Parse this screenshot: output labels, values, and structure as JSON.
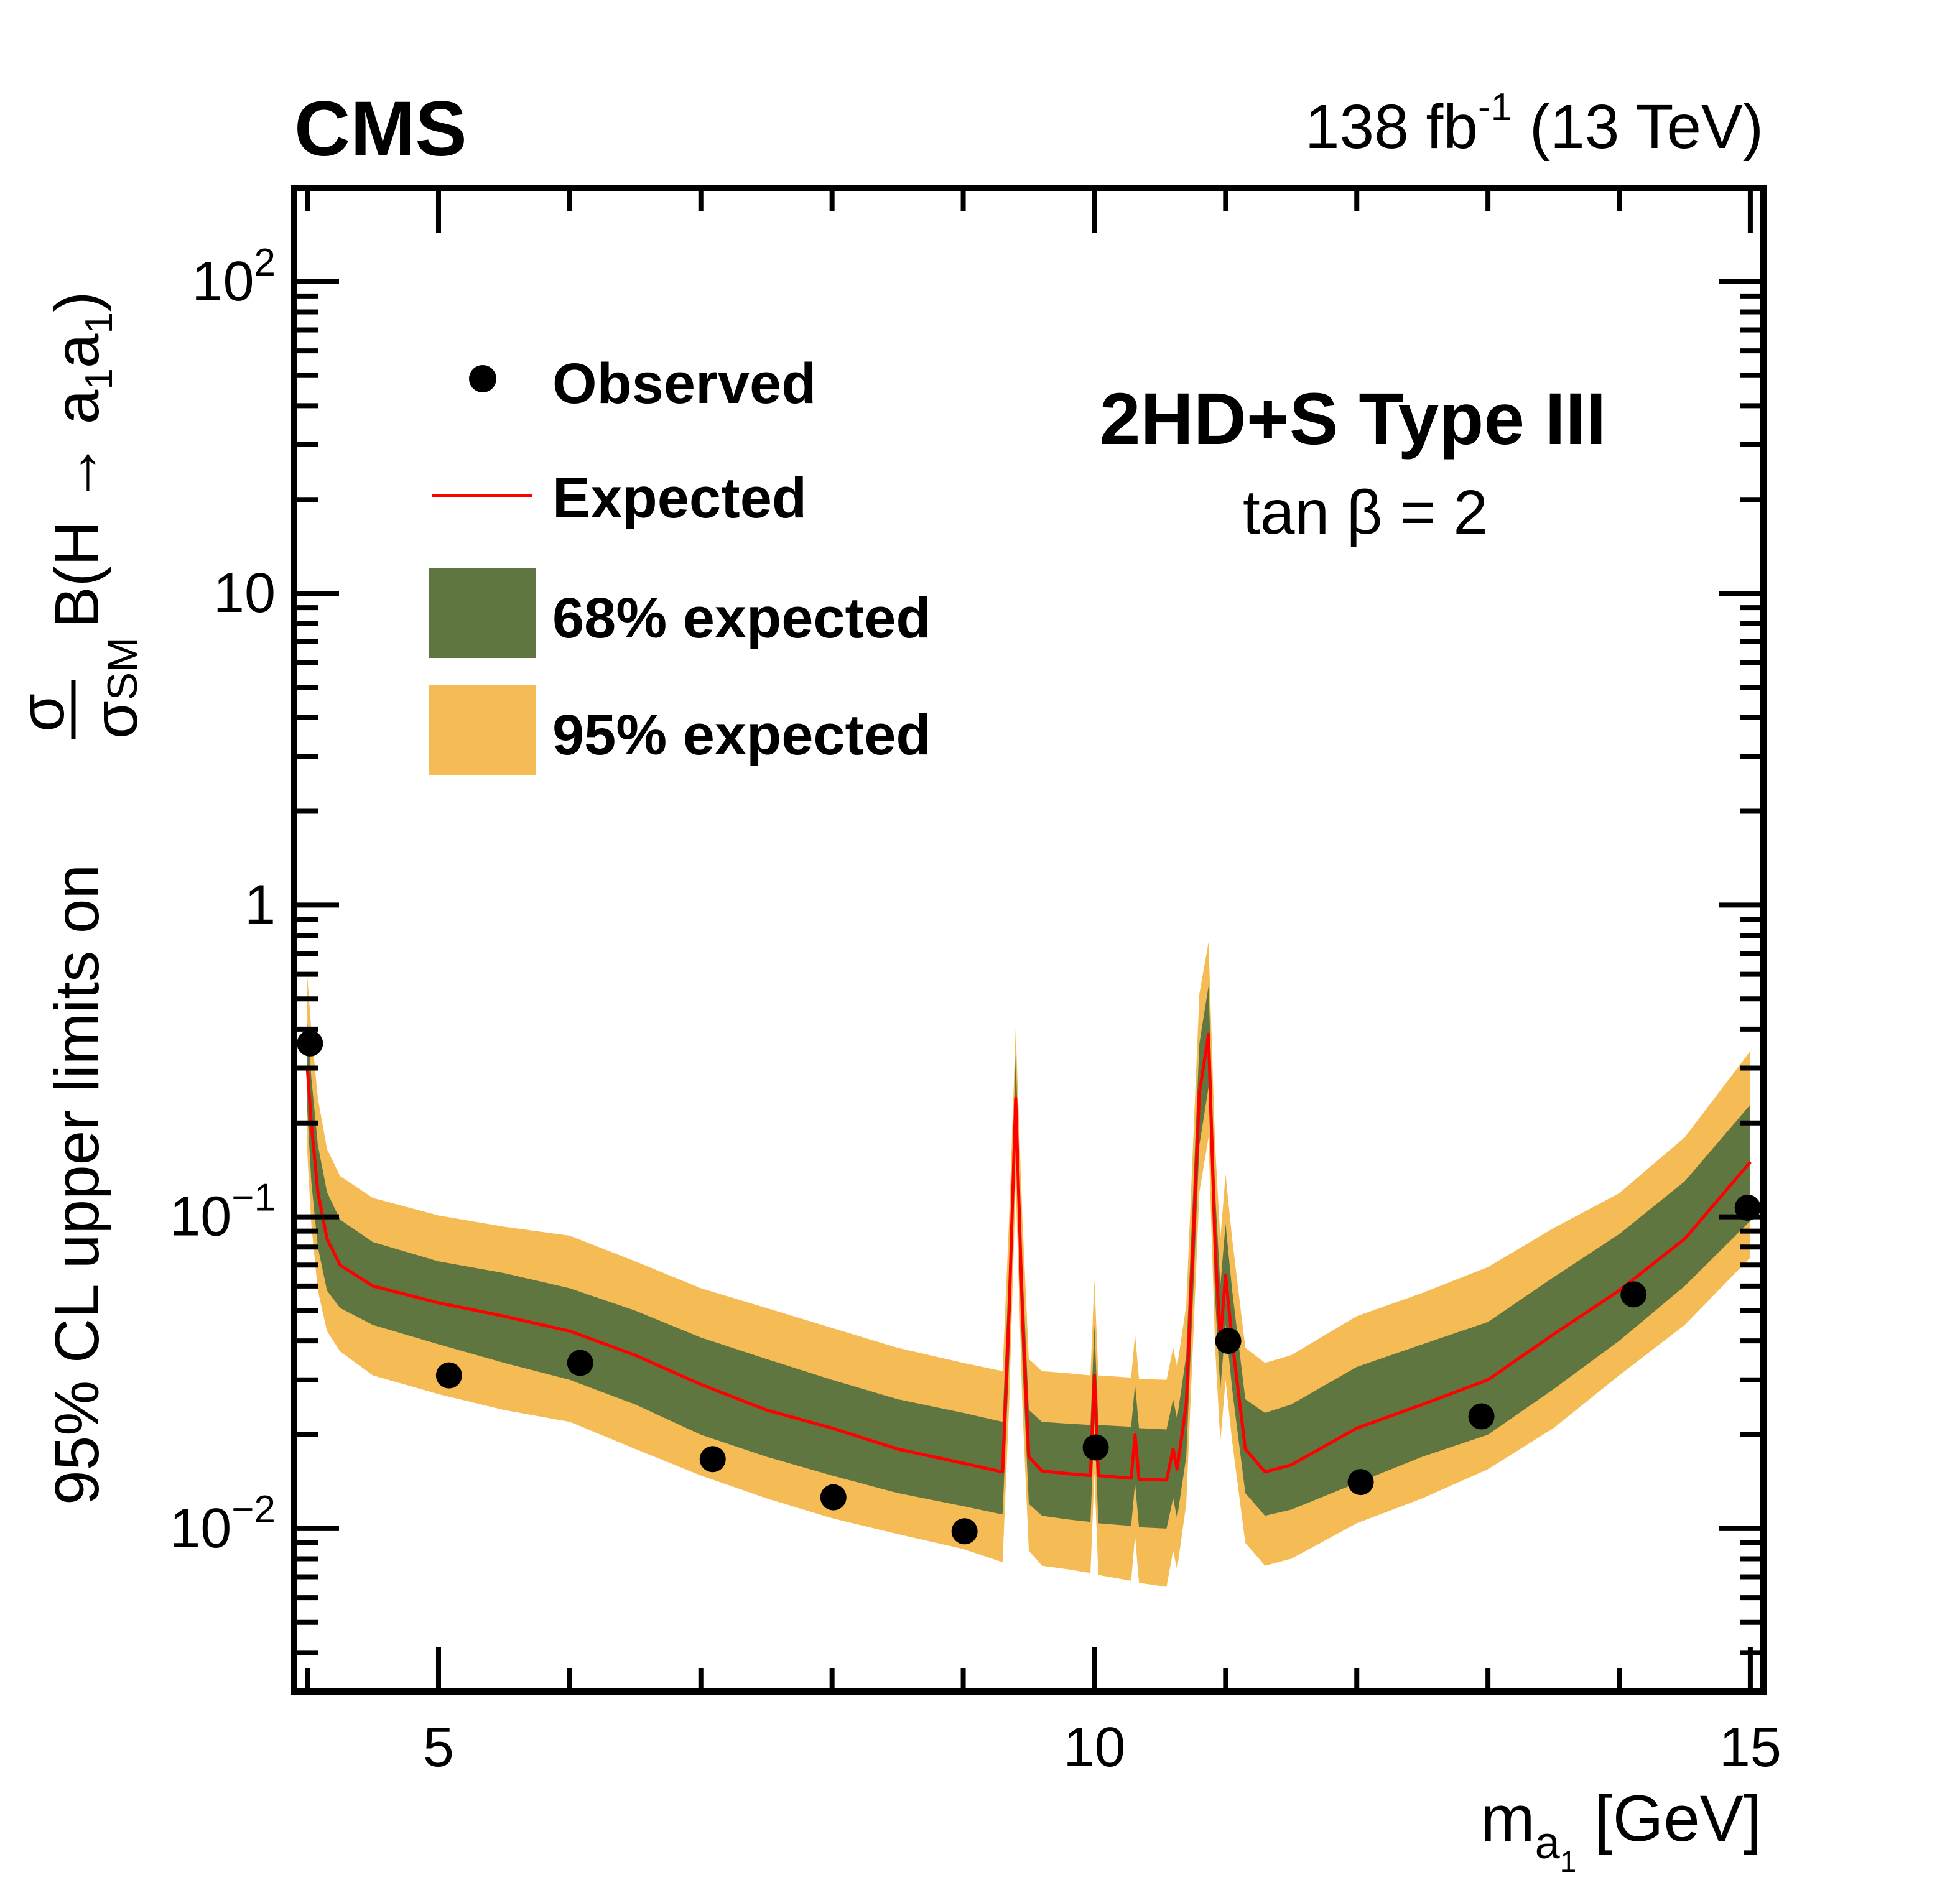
{
  "chart_data": {
    "type": "line",
    "experiment_label": "CMS",
    "lumi_label": {
      "value": "138 fb",
      "sup": "-1",
      "energy": " (13 TeV)"
    },
    "annotation": {
      "title": "2HD+S Type III",
      "subtitle": "tan β = 2"
    },
    "xlabel": {
      "main": "m",
      "sub": "a",
      "subsub": "1",
      "unit": " [GeV]"
    },
    "ylabel": {
      "prefix": "95% CL upper limits on ",
      "frac_num": "σ",
      "frac_den": "σ",
      "frac_den_sub": "SM",
      "suffix": " B(H → a",
      "s1": "1",
      "mid": "a",
      "s2": "1",
      "close": ")"
    },
    "xlim": [
      3.9,
      15.1
    ],
    "ylim": [
      0.003,
      200
    ],
    "yscale": "log",
    "xticks": [
      {
        "value": 5,
        "label": "5"
      },
      {
        "value": 10,
        "label": "10"
      },
      {
        "value": 15,
        "label": "15"
      }
    ],
    "yticks": [
      {
        "value": 100,
        "base": "10",
        "exp": "2"
      },
      {
        "value": 10,
        "base": "10",
        "exp": ""
      },
      {
        "value": 1,
        "base": "1",
        "exp": ""
      },
      {
        "value": 0.1,
        "base": "10",
        "exp": "−1"
      },
      {
        "value": 0.01,
        "base": "10",
        "exp": "−2"
      }
    ],
    "grid": false,
    "legend": {
      "placement": "top-left",
      "entries": [
        {
          "label": "Observed",
          "kind": "marker",
          "color": "#000000"
        },
        {
          "label": "Expected",
          "kind": "line",
          "color": "#ff0000"
        },
        {
          "label": "68% expected",
          "kind": "fill",
          "color": "#607641"
        },
        {
          "label": "95% expected",
          "kind": "fill",
          "color": "#f5bb54"
        }
      ]
    },
    "colors": {
      "observed": "#000000",
      "expected": "#ff0000",
      "band68": "#607641",
      "band95": "#f5bb54"
    },
    "observed": {
      "x": [
        4.02,
        5.08,
        6.08,
        7.09,
        8.01,
        9.01,
        10.01,
        11.02,
        12.03,
        12.95,
        14.11,
        14.98
      ],
      "y": [
        0.36,
        0.031,
        0.034,
        0.0167,
        0.0126,
        0.0098,
        0.0182,
        0.04,
        0.0141,
        0.0229,
        0.0564,
        0.107
      ]
    },
    "expected": {
      "x": [
        4.0,
        4.03,
        4.08,
        4.15,
        4.25,
        4.5,
        5.0,
        5.5,
        6.0,
        6.5,
        7.0,
        7.5,
        8.0,
        8.5,
        9.0,
        9.3,
        9.35,
        9.4,
        9.45,
        9.5,
        9.6,
        9.8,
        9.97,
        10.0,
        10.03,
        10.28,
        10.31,
        10.34,
        10.55,
        10.6,
        10.63,
        10.7,
        10.8,
        10.87,
        10.92,
        10.96,
        11.0,
        11.05,
        11.15,
        11.3,
        11.5,
        12.0,
        12.5,
        13.0,
        13.5,
        14.0,
        14.5,
        15.0
      ],
      "median": [
        0.3,
        0.2,
        0.12,
        0.085,
        0.07,
        0.06,
        0.053,
        0.048,
        0.043,
        0.036,
        0.029,
        0.024,
        0.021,
        0.018,
        0.0162,
        0.0152,
        0.05,
        0.24,
        0.05,
        0.017,
        0.0153,
        0.015,
        0.0148,
        0.031,
        0.0148,
        0.0145,
        0.02,
        0.0144,
        0.0143,
        0.018,
        0.0155,
        0.025,
        0.25,
        0.385,
        0.08,
        0.04,
        0.065,
        0.04,
        0.018,
        0.0152,
        0.016,
        0.021,
        0.025,
        0.03,
        0.042,
        0.058,
        0.085,
        0.15
      ],
      "band68_lo": [
        0.22,
        0.13,
        0.08,
        0.058,
        0.051,
        0.045,
        0.039,
        0.034,
        0.03,
        0.025,
        0.02,
        0.017,
        0.0148,
        0.013,
        0.0118,
        0.0111,
        0.035,
        0.18,
        0.035,
        0.012,
        0.011,
        0.0107,
        0.0105,
        0.022,
        0.0104,
        0.0102,
        0.014,
        0.0101,
        0.01,
        0.0125,
        0.0108,
        0.017,
        0.17,
        0.26,
        0.055,
        0.028,
        0.045,
        0.028,
        0.013,
        0.011,
        0.0115,
        0.014,
        0.017,
        0.02,
        0.028,
        0.04,
        0.06,
        0.097
      ],
      "band68_hi": [
        0.42,
        0.28,
        0.17,
        0.12,
        0.098,
        0.083,
        0.072,
        0.066,
        0.059,
        0.05,
        0.041,
        0.035,
        0.03,
        0.026,
        0.0235,
        0.022,
        0.07,
        0.33,
        0.07,
        0.024,
        0.022,
        0.0217,
        0.0215,
        0.045,
        0.0215,
        0.0212,
        0.029,
        0.021,
        0.0208,
        0.026,
        0.0225,
        0.036,
        0.36,
        0.55,
        0.12,
        0.06,
        0.095,
        0.058,
        0.026,
        0.0235,
        0.025,
        0.033,
        0.039,
        0.046,
        0.064,
        0.088,
        0.13,
        0.229
      ],
      "band95_lo": [
        0.16,
        0.095,
        0.058,
        0.043,
        0.037,
        0.031,
        0.027,
        0.024,
        0.022,
        0.018,
        0.0148,
        0.0125,
        0.0108,
        0.0096,
        0.0086,
        0.0078,
        0.025,
        0.13,
        0.025,
        0.0085,
        0.0076,
        0.0074,
        0.0072,
        0.015,
        0.0071,
        0.0068,
        0.0095,
        0.0067,
        0.0065,
        0.0085,
        0.0074,
        0.012,
        0.12,
        0.18,
        0.038,
        0.019,
        0.03,
        0.019,
        0.009,
        0.0076,
        0.008,
        0.0104,
        0.0125,
        0.0155,
        0.021,
        0.031,
        0.045,
        0.074
      ],
      "band95_hi": [
        0.59,
        0.4,
        0.24,
        0.165,
        0.135,
        0.115,
        0.101,
        0.093,
        0.087,
        0.072,
        0.059,
        0.051,
        0.044,
        0.038,
        0.034,
        0.032,
        0.1,
        0.4,
        0.1,
        0.035,
        0.032,
        0.0315,
        0.031,
        0.063,
        0.031,
        0.0305,
        0.042,
        0.0302,
        0.03,
        0.038,
        0.033,
        0.052,
        0.52,
        0.76,
        0.17,
        0.085,
        0.137,
        0.085,
        0.038,
        0.034,
        0.036,
        0.048,
        0.057,
        0.069,
        0.092,
        0.119,
        0.18,
        0.34
      ]
    }
  }
}
